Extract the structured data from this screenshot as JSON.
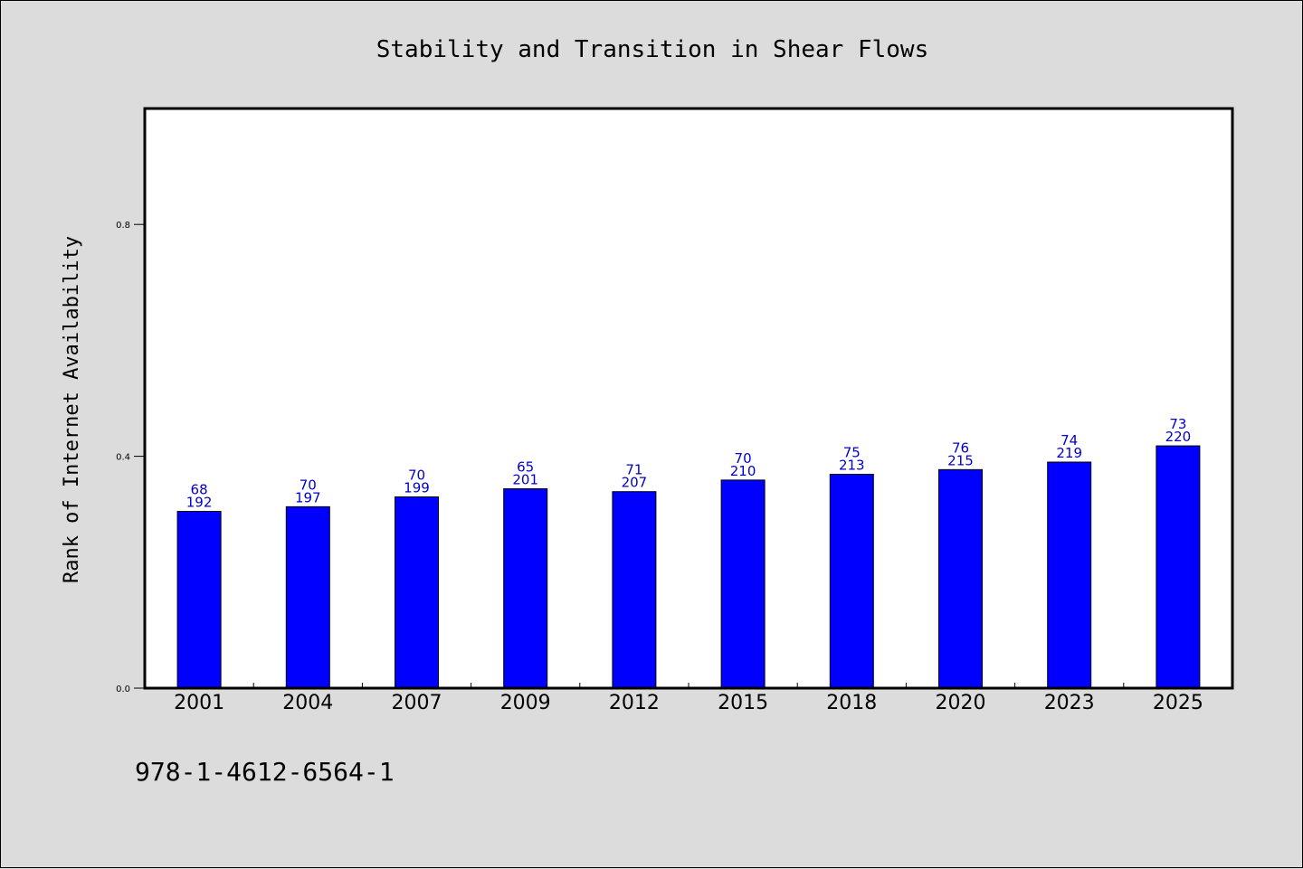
{
  "chart_data": {
    "type": "bar",
    "title": "Stability and Transition in Shear Flows",
    "xlabel": "",
    "ylabel": "Rank of Internet Availability",
    "categories": [
      "2001",
      "2004",
      "2007",
      "2009",
      "2012",
      "2015",
      "2018",
      "2020",
      "2023",
      "2025"
    ],
    "values": [
      0.305,
      0.313,
      0.33,
      0.344,
      0.339,
      0.359,
      0.369,
      0.377,
      0.39,
      0.418
    ],
    "labels_top": [
      "68",
      "70",
      "70",
      "65",
      "71",
      "70",
      "75",
      "76",
      "74",
      "73"
    ],
    "labels_bottom": [
      "192",
      "197",
      "199",
      "201",
      "207",
      "210",
      "213",
      "215",
      "219",
      "220"
    ],
    "ylim": [
      0,
      1.0
    ],
    "yticks": [
      "0.0",
      "0.4",
      "0.8"
    ],
    "bar_color": "#0000ff",
    "label_color": "#0000cc",
    "grid": false,
    "legend": "none"
  },
  "footnote": "978-1-4612-6564-1"
}
